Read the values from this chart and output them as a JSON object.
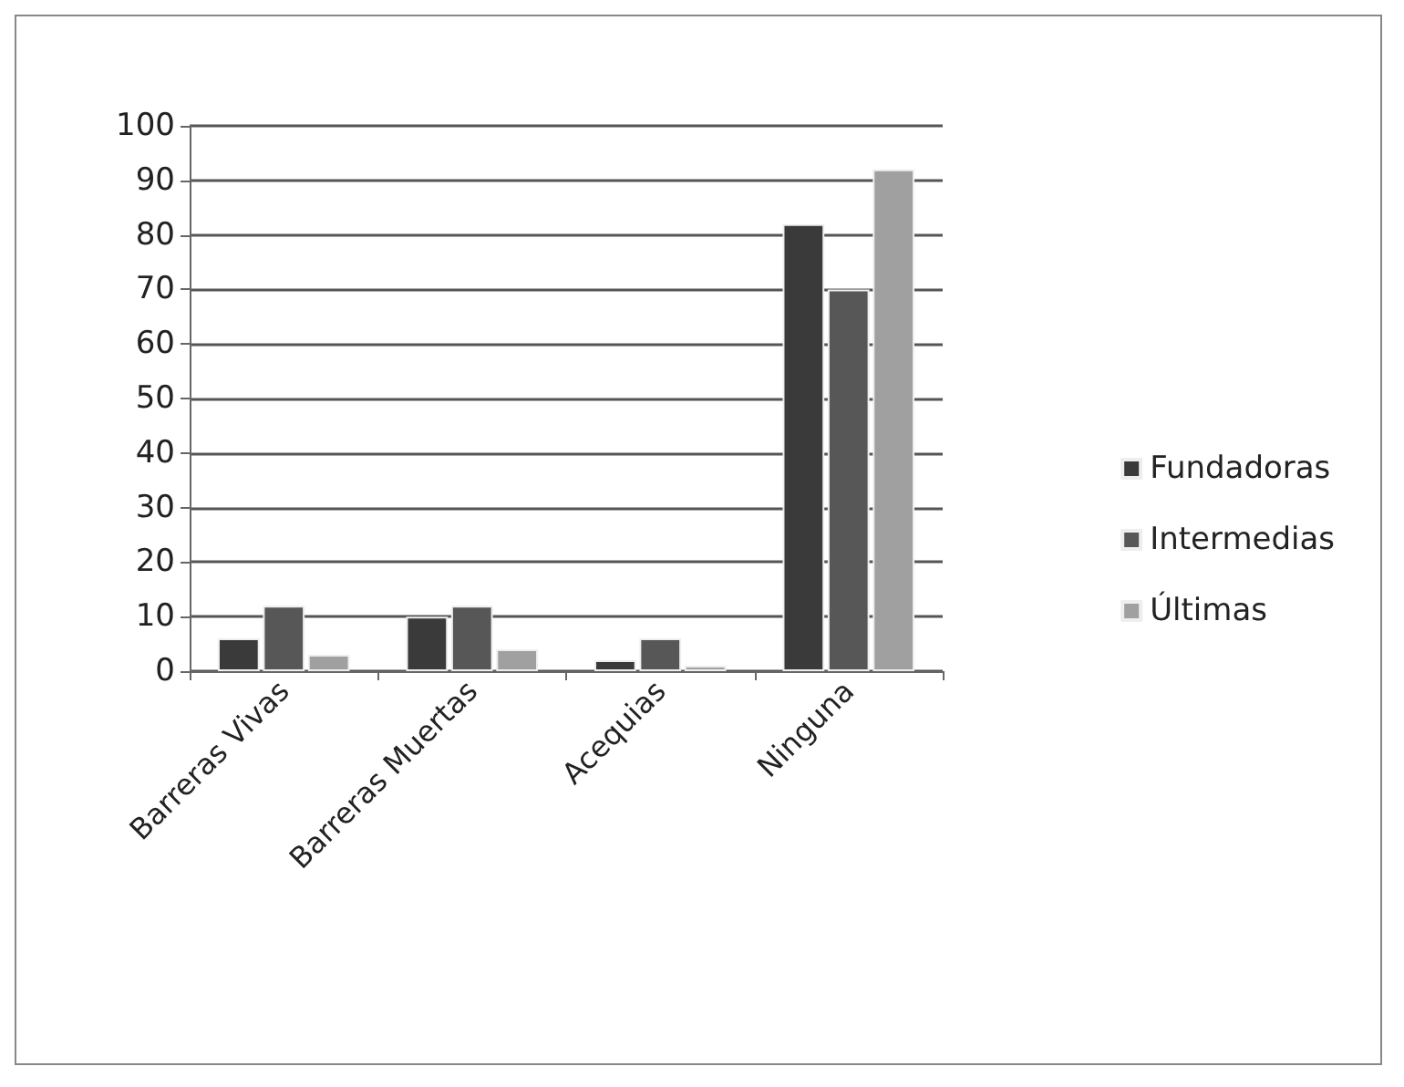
{
  "chart_data": {
    "type": "bar",
    "categories": [
      "Barreras Vivas",
      "Barreras Muertas",
      "Acequias",
      "Ninguna"
    ],
    "series": [
      {
        "name": "Fundadoras",
        "color": "#3a3a3a",
        "values": [
          6,
          10,
          2,
          82
        ]
      },
      {
        "name": "Intermedias",
        "color": "#575757",
        "values": [
          12,
          12,
          6,
          70
        ]
      },
      {
        "name": "Últimas",
        "color": "#a0a0a0",
        "values": [
          3,
          4,
          1,
          92
        ]
      }
    ],
    "ylim": [
      0,
      100
    ],
    "yticks": [
      0,
      10,
      20,
      30,
      40,
      50,
      60,
      70,
      80,
      90,
      100
    ],
    "grid": "y",
    "legend": "right"
  }
}
